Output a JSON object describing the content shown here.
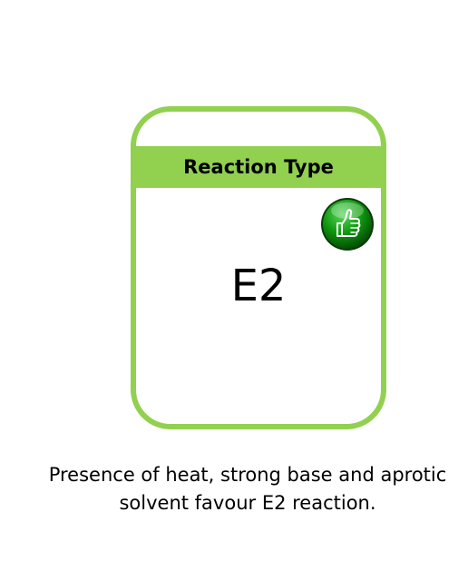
{
  "card": {
    "header": "Reaction Type",
    "value": "E2",
    "badge_icon": "thumbs-up-icon",
    "accent_color": "#92d050",
    "badge_color": "#109910"
  },
  "caption": {
    "line1": "Presence of heat, strong base and aprotic",
    "line2": "solvent favour E2 reaction."
  }
}
